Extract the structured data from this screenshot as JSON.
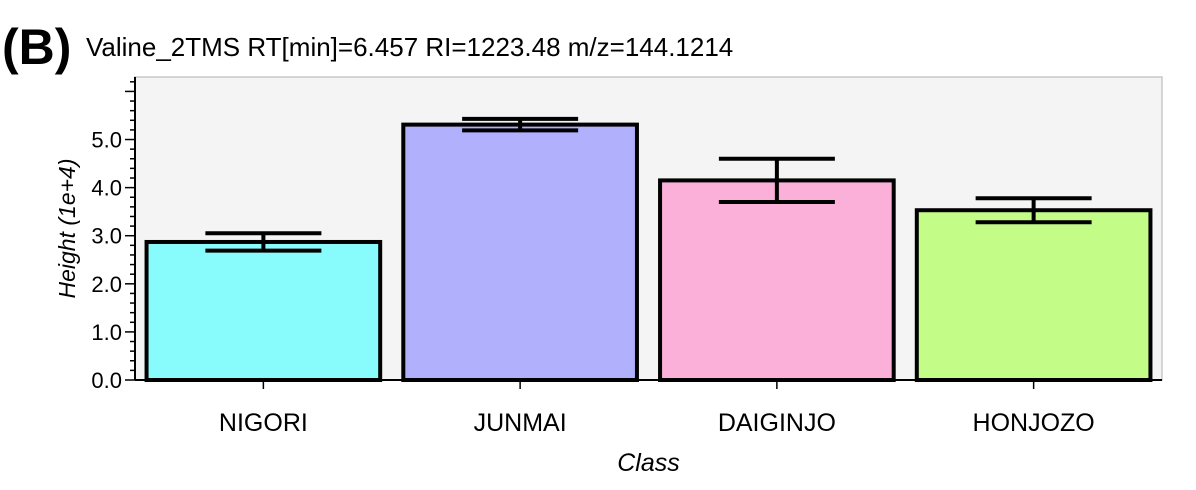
{
  "panel_label": "(B)",
  "chart_data": {
    "type": "bar",
    "title": "Valine_2TMS RT[min]=6.457 RI=1223.48 m/z=144.1214",
    "xlabel": "Class",
    "ylabel": "Height (1e+4)",
    "categories": [
      "NIGORI",
      "JUNMAI",
      "DAIGINJO",
      "HONJOZO"
    ],
    "values": [
      2.87,
      5.31,
      4.15,
      3.53
    ],
    "errors": [
      0.18,
      0.12,
      0.45,
      0.25
    ],
    "colors": [
      "#88fcfc",
      "#b0b0fc",
      "#fab0d8",
      "#c4fc88"
    ],
    "ylim": [
      0,
      6.3
    ],
    "yticks": [
      "0.0",
      "1.0",
      "2.0",
      "3.0",
      "4.0",
      "5.0"
    ],
    "plot_background": "#f4f4f4",
    "grid": false,
    "legend": "none"
  }
}
